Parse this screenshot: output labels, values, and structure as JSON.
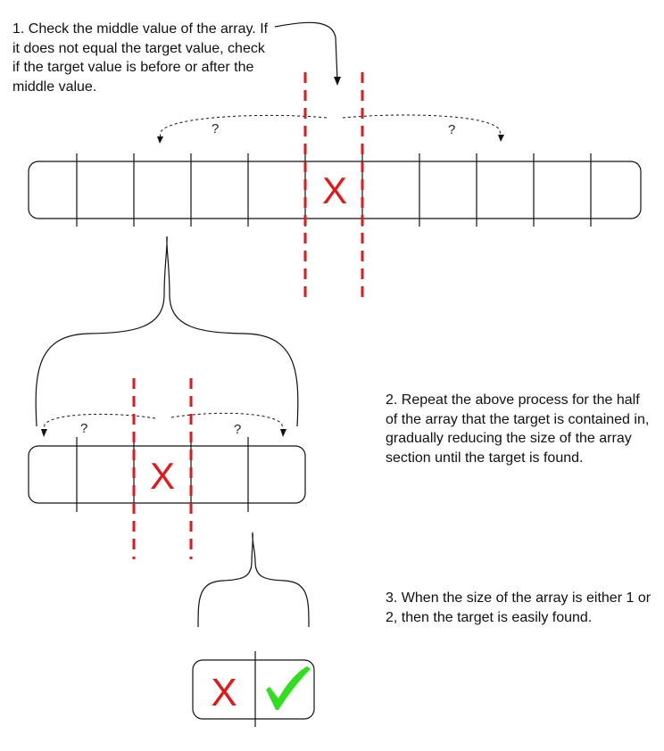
{
  "steps": [
    {
      "number": "1.",
      "text": "Check the middle value of the array. If it does not equal the target value, check if the target value is before or after the middle value."
    },
    {
      "number": "2.",
      "text": "Repeat the above process for the half of the array that the target is contained in, gradually reducing the size of the array section until the target is found."
    },
    {
      "number": "3.",
      "text": "When the size of the array is either 1 or 2, then the target is easily found."
    }
  ],
  "arrays": [
    {
      "cells": 11,
      "checked_cell": 5,
      "mark": "X",
      "question_left": "?",
      "question_right": "?"
    },
    {
      "cells": 5,
      "checked_cell": 2,
      "mark": "X",
      "question_left": "?",
      "question_right": "?"
    },
    {
      "cells": 2,
      "marks": [
        "X",
        "✓"
      ]
    }
  ],
  "colors": {
    "outline": "#111111",
    "split_line": "#e0191b",
    "miss_mark": "#e0191b",
    "found_mark": "#33dd22"
  },
  "icons": {
    "miss": "x-mark",
    "found": "checkmark-icon"
  }
}
